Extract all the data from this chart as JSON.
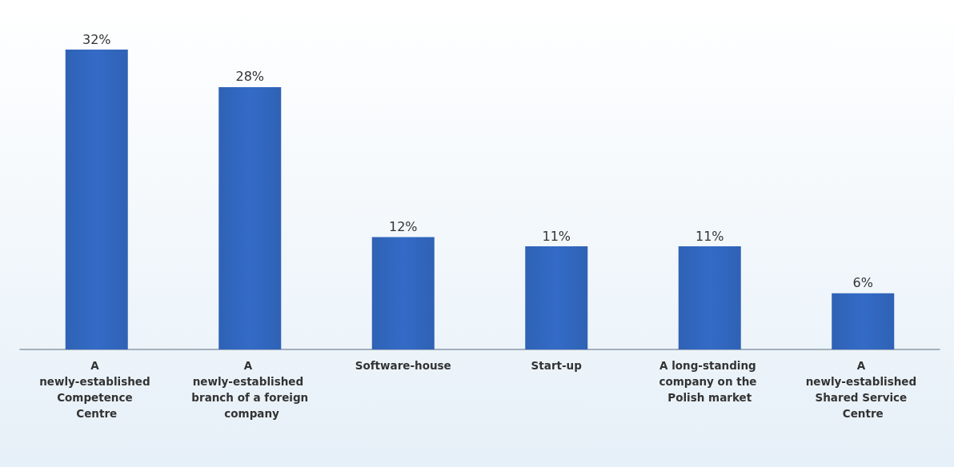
{
  "chart_data": {
    "type": "bar",
    "categories": [
      "A newly-established Competence Centre",
      "A newly-established branch of a foreign company",
      "Software-house",
      "Start-up",
      "A long-standing company on the Polish market",
      "A newly-established Shared Service Centre"
    ],
    "values": [
      32,
      28,
      12,
      11,
      11,
      6
    ],
    "value_labels": [
      "32%",
      "28%",
      "12%",
      "11%",
      "11%",
      "6%"
    ],
    "color": "#2f62b5"
  }
}
